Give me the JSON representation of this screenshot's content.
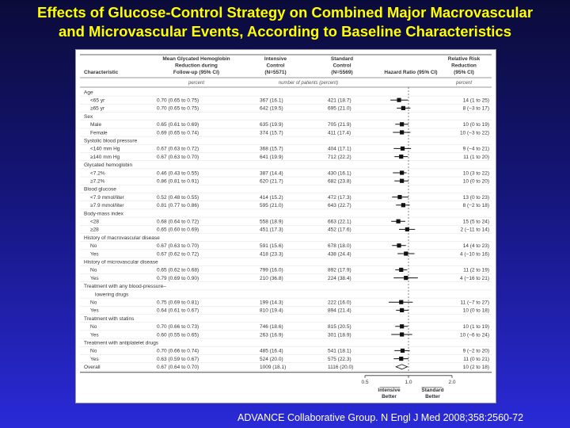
{
  "title": {
    "line1": "Effects of Glucose-Control Strategy on Combined Major Macrovascular",
    "line2": "and Microvascular Events, According to Baseline Characteristics"
  },
  "citation": "ADVANCE Collaborative Group. N Engl J Med 2008;358:2560-72",
  "table": {
    "header": {
      "characteristic": [
        "Characteristic"
      ],
      "hba1c": [
        "Mean Glycated Hemoglobin",
        "Reduction during",
        "Follow-up (95% CI)"
      ],
      "intensive": [
        "Intensive",
        "Control",
        "(N=5571)"
      ],
      "standard": [
        "Standard",
        "Control",
        "(N=5569)"
      ],
      "hazard": [
        "Hazard Ratio (95% CI)"
      ],
      "rrr": [
        "Relative Risk",
        "Reduction",
        "(95% CI)"
      ]
    },
    "units": {
      "hba1c": "percent",
      "patients": "number of patients (percent)",
      "rrr": "percent"
    },
    "rows": [
      {
        "label": "Age",
        "group": true
      },
      {
        "label": "<65 yr",
        "hba1c": "0.70 (0.65 to 0.75)",
        "intensive": "367 (16.1)",
        "standard": "421 (18.7)",
        "rrr": "14 (1 to 25)"
      },
      {
        "label": "≥65 yr",
        "hba1c": "0.70 (0.65 to 0.75)",
        "intensive": "642 (19.5)",
        "standard": "695 (21.0)",
        "rrr": "8 (−3 to 17)"
      },
      {
        "label": "Sex",
        "group": true
      },
      {
        "label": "Male",
        "hba1c": "0.65 (0.61 to 0.69)",
        "intensive": "635 (19.9)",
        "standard": "705 (21.9)",
        "rrr": "10 (0 to 19)"
      },
      {
        "label": "Female",
        "hba1c": "0.69 (0.65 to 0.74)",
        "intensive": "374 (15.7)",
        "standard": "411 (17.4)",
        "rrr": "10 (−3 to 22)"
      },
      {
        "label": "Systolic blood pressure",
        "group": true
      },
      {
        "label": "<140 mm Hg",
        "hba1c": "0.67 (0.63 to 0.72)",
        "intensive": "368 (15.7)",
        "standard": "404 (17.1)",
        "rrr": "9 (−4 to 21)"
      },
      {
        "label": "≥140 mm Hg",
        "hba1c": "0.67 (0.63 to 0.70)",
        "intensive": "641 (19.9)",
        "standard": "712 (22.2)",
        "rrr": "11 (1 to 20)"
      },
      {
        "label": "Glycated hemoglobin",
        "group": true
      },
      {
        "label": "<7.2%",
        "hba1c": "0.46 (0.43 to 0.55)",
        "intensive": "387 (14.4)",
        "standard": "430 (16.1)",
        "rrr": "10 (3 to 22)"
      },
      {
        "label": "≥7.2%",
        "hba1c": "0.86 (0.81 to 0.91)",
        "intensive": "620 (21.7)",
        "standard": "682 (23.8)",
        "rrr": "10 (0 to 20)"
      },
      {
        "label": "Blood glucose",
        "group": true
      },
      {
        "label": "<7.9 mmol/liter",
        "hba1c": "0.52 (0.48 to 0.55)",
        "intensive": "414 (15.2)",
        "standard": "472 (17.3)",
        "rrr": "13 (0 to 23)"
      },
      {
        "label": "≥7.9 mmol/liter",
        "hba1c": "0.81 (0.77 to 0.86)",
        "intensive": "595 (21.0)",
        "standard": "643 (22.7)",
        "rrr": "8 (−2 to 18)"
      },
      {
        "label": "Body-mass index",
        "group": true
      },
      {
        "label": "<28",
        "hba1c": "0.68 (0.64 to 0.72)",
        "intensive": "558 (18.9)",
        "standard": "663 (22.1)",
        "rrr": "15 (5 to 24)"
      },
      {
        "label": "≥28",
        "hba1c": "0.65 (0.60 to 0.69)",
        "intensive": "451 (17.3)",
        "standard": "452 (17.6)",
        "rrr": "2 (−11 to 14)"
      },
      {
        "label": "History of macrovascular disease",
        "group": true
      },
      {
        "label": "No",
        "hba1c": "0.67 (0.63 to 0.70)",
        "intensive": "591 (15.6)",
        "standard": "678 (18.0)",
        "rrr": "14 (4 to 23)"
      },
      {
        "label": "Yes",
        "hba1c": "0.67 (0.62 to 0.72)",
        "intensive": "418 (23.3)",
        "standard": "438 (24.4)",
        "rrr": "4 (−10 to 16)"
      },
      {
        "label": "History of microvascular disease",
        "group": true
      },
      {
        "label": "No",
        "hba1c": "0.65 (0.62 to 0.68)",
        "intensive": "799 (16.0)",
        "standard": "892 (17.9)",
        "rrr": "11 (2 to 19)"
      },
      {
        "label": "Yes",
        "hba1c": "0.79 (0.69 to 0.90)",
        "intensive": "210 (36.8)",
        "standard": "224 (38.4)",
        "rrr": "4 (−16 to 21)"
      },
      {
        "label": "Treatment with any blood-pressure–",
        "group": true
      },
      {
        "label": "lowering drugs",
        "group": true,
        "indent": true
      },
      {
        "label": "No",
        "hba1c": "0.75 (0.69 to 0.81)",
        "intensive": "199 (14.3)",
        "standard": "222 (16.0)",
        "rrr": "11 (−7 to 27)"
      },
      {
        "label": "Yes",
        "hba1c": "0.64 (0.61 to 0.67)",
        "intensive": "810 (19.4)",
        "standard": "894 (21.4)",
        "rrr": "10 (0 to 18)"
      },
      {
        "label": "Treatment with statins",
        "group": true
      },
      {
        "label": "No",
        "hba1c": "0.70 (0.66 to 0.73)",
        "intensive": "746 (18.6)",
        "standard": "815 (20.5)",
        "rrr": "10 (1 to 19)"
      },
      {
        "label": "Yes",
        "hba1c": "0.60 (0.55 to 0.65)",
        "intensive": "263 (16.9)",
        "standard": "301 (18.9)",
        "rrr": "10 (−6 to 24)"
      },
      {
        "label": "Treatment with antiplatelet drugs",
        "group": true
      },
      {
        "label": "No",
        "hba1c": "0.70 (0.66 to 0.74)",
        "intensive": "485 (16.4)",
        "standard": "541 (18.1)",
        "rrr": "9 (−2 to 20)"
      },
      {
        "label": "Yes",
        "hba1c": "0.63 (0.59 to 0.67)",
        "intensive": "524 (20.0)",
        "standard": "575 (22.3)",
        "rrr": "11 (0 to 21)"
      },
      {
        "label": "Overall",
        "hba1c": "0.67 (0.64 to 0.70)",
        "intensive": "1009 (18.1)",
        "standard": "1116 (20.0)",
        "rrr": "10 (2 to 18)",
        "overall": true
      }
    ]
  },
  "chart_data": {
    "type": "forest",
    "xlabel_left": [
      "Intensive",
      "Better"
    ],
    "xlabel_right": [
      "Standard",
      "Better"
    ],
    "x_ticks": [
      0.5,
      1.0,
      2.0
    ],
    "x_tick_labels": [
      "0.5",
      "1.0",
      "2.0"
    ],
    "xlim": [
      0.5,
      2.0
    ],
    "x_scale": "log",
    "reference_line": 1.0,
    "points": [
      {
        "row": "<65 yr",
        "hr": 0.86,
        "lo": 0.75,
        "hi": 0.99
      },
      {
        "row": "≥65 yr",
        "hr": 0.92,
        "lo": 0.83,
        "hi": 1.03
      },
      {
        "row": "Male",
        "hr": 0.9,
        "lo": 0.81,
        "hi": 1.0
      },
      {
        "row": "Female",
        "hr": 0.9,
        "lo": 0.78,
        "hi": 1.03
      },
      {
        "row": "<140 mm Hg",
        "hr": 0.91,
        "lo": 0.79,
        "hi": 1.04
      },
      {
        "row": "≥140 mm Hg",
        "hr": 0.89,
        "lo": 0.8,
        "hi": 0.99
      },
      {
        "row": "<7.2%",
        "hr": 0.9,
        "lo": 0.78,
        "hi": 0.97
      },
      {
        "row": "≥7.2%",
        "hr": 0.9,
        "lo": 0.8,
        "hi": 1.0
      },
      {
        "row": "<7.9 mmol/liter",
        "hr": 0.87,
        "lo": 0.77,
        "hi": 1.0
      },
      {
        "row": "≥7.9 mmol/liter",
        "hr": 0.92,
        "lo": 0.82,
        "hi": 1.02
      },
      {
        "row": "<28",
        "hr": 0.85,
        "lo": 0.76,
        "hi": 0.95
      },
      {
        "row": "≥28",
        "hr": 0.98,
        "lo": 0.86,
        "hi": 1.11
      },
      {
        "row": "No (macrovascular)",
        "hr": 0.86,
        "lo": 0.77,
        "hi": 0.96
      },
      {
        "row": "Yes (macrovascular)",
        "hr": 0.96,
        "lo": 0.84,
        "hi": 1.1
      },
      {
        "row": "No (microvascular)",
        "hr": 0.89,
        "lo": 0.81,
        "hi": 0.98
      },
      {
        "row": "Yes (microvascular)",
        "hr": 0.96,
        "lo": 0.79,
        "hi": 1.16
      },
      {
        "row": "No (BP drugs)",
        "hr": 0.89,
        "lo": 0.73,
        "hi": 1.07
      },
      {
        "row": "Yes (BP drugs)",
        "hr": 0.9,
        "lo": 0.82,
        "hi": 1.0
      },
      {
        "row": "No (statins)",
        "hr": 0.9,
        "lo": 0.81,
        "hi": 0.99
      },
      {
        "row": "Yes (statins)",
        "hr": 0.9,
        "lo": 0.76,
        "hi": 1.06
      },
      {
        "row": "No (antiplatelet)",
        "hr": 0.91,
        "lo": 0.8,
        "hi": 1.02
      },
      {
        "row": "Yes (antiplatelet)",
        "hr": 0.89,
        "lo": 0.79,
        "hi": 1.0
      },
      {
        "row": "Overall",
        "hr": 0.9,
        "lo": 0.82,
        "hi": 0.98,
        "overall": true
      }
    ]
  }
}
